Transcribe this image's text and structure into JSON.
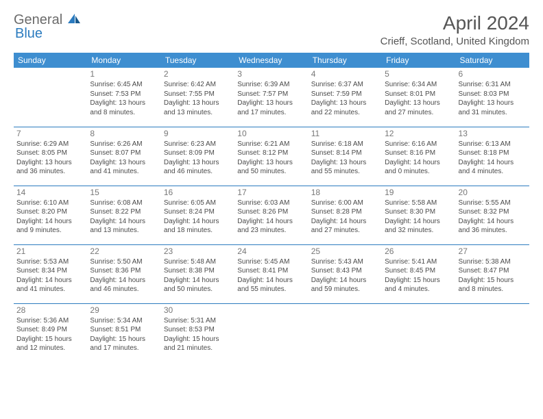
{
  "brand": {
    "part1": "General",
    "part2": "Blue"
  },
  "title": "April 2024",
  "location": "Crieff, Scotland, United Kingdom",
  "colors": {
    "header_bg": "#3e8ed0",
    "header_text": "#ffffff",
    "rule": "#2b7bbf",
    "body_text": "#4a4a4a",
    "daynum": "#777777",
    "title_text": "#555555",
    "logo_gray": "#6b6b6b",
    "logo_blue": "#2b7bbf",
    "background": "#ffffff"
  },
  "type": "calendar-table",
  "columns": [
    "Sunday",
    "Monday",
    "Tuesday",
    "Wednesday",
    "Thursday",
    "Friday",
    "Saturday"
  ],
  "weeks": [
    [
      null,
      {
        "d": "1",
        "sr": "6:45 AM",
        "ss": "7:53 PM",
        "dl1": "Daylight: 13 hours",
        "dl2": "and 8 minutes."
      },
      {
        "d": "2",
        "sr": "6:42 AM",
        "ss": "7:55 PM",
        "dl1": "Daylight: 13 hours",
        "dl2": "and 13 minutes."
      },
      {
        "d": "3",
        "sr": "6:39 AM",
        "ss": "7:57 PM",
        "dl1": "Daylight: 13 hours",
        "dl2": "and 17 minutes."
      },
      {
        "d": "4",
        "sr": "6:37 AM",
        "ss": "7:59 PM",
        "dl1": "Daylight: 13 hours",
        "dl2": "and 22 minutes."
      },
      {
        "d": "5",
        "sr": "6:34 AM",
        "ss": "8:01 PM",
        "dl1": "Daylight: 13 hours",
        "dl2": "and 27 minutes."
      },
      {
        "d": "6",
        "sr": "6:31 AM",
        "ss": "8:03 PM",
        "dl1": "Daylight: 13 hours",
        "dl2": "and 31 minutes."
      }
    ],
    [
      {
        "d": "7",
        "sr": "6:29 AM",
        "ss": "8:05 PM",
        "dl1": "Daylight: 13 hours",
        "dl2": "and 36 minutes."
      },
      {
        "d": "8",
        "sr": "6:26 AM",
        "ss": "8:07 PM",
        "dl1": "Daylight: 13 hours",
        "dl2": "and 41 minutes."
      },
      {
        "d": "9",
        "sr": "6:23 AM",
        "ss": "8:09 PM",
        "dl1": "Daylight: 13 hours",
        "dl2": "and 46 minutes."
      },
      {
        "d": "10",
        "sr": "6:21 AM",
        "ss": "8:12 PM",
        "dl1": "Daylight: 13 hours",
        "dl2": "and 50 minutes."
      },
      {
        "d": "11",
        "sr": "6:18 AM",
        "ss": "8:14 PM",
        "dl1": "Daylight: 13 hours",
        "dl2": "and 55 minutes."
      },
      {
        "d": "12",
        "sr": "6:16 AM",
        "ss": "8:16 PM",
        "dl1": "Daylight: 14 hours",
        "dl2": "and 0 minutes."
      },
      {
        "d": "13",
        "sr": "6:13 AM",
        "ss": "8:18 PM",
        "dl1": "Daylight: 14 hours",
        "dl2": "and 4 minutes."
      }
    ],
    [
      {
        "d": "14",
        "sr": "6:10 AM",
        "ss": "8:20 PM",
        "dl1": "Daylight: 14 hours",
        "dl2": "and 9 minutes."
      },
      {
        "d": "15",
        "sr": "6:08 AM",
        "ss": "8:22 PM",
        "dl1": "Daylight: 14 hours",
        "dl2": "and 13 minutes."
      },
      {
        "d": "16",
        "sr": "6:05 AM",
        "ss": "8:24 PM",
        "dl1": "Daylight: 14 hours",
        "dl2": "and 18 minutes."
      },
      {
        "d": "17",
        "sr": "6:03 AM",
        "ss": "8:26 PM",
        "dl1": "Daylight: 14 hours",
        "dl2": "and 23 minutes."
      },
      {
        "d": "18",
        "sr": "6:00 AM",
        "ss": "8:28 PM",
        "dl1": "Daylight: 14 hours",
        "dl2": "and 27 minutes."
      },
      {
        "d": "19",
        "sr": "5:58 AM",
        "ss": "8:30 PM",
        "dl1": "Daylight: 14 hours",
        "dl2": "and 32 minutes."
      },
      {
        "d": "20",
        "sr": "5:55 AM",
        "ss": "8:32 PM",
        "dl1": "Daylight: 14 hours",
        "dl2": "and 36 minutes."
      }
    ],
    [
      {
        "d": "21",
        "sr": "5:53 AM",
        "ss": "8:34 PM",
        "dl1": "Daylight: 14 hours",
        "dl2": "and 41 minutes."
      },
      {
        "d": "22",
        "sr": "5:50 AM",
        "ss": "8:36 PM",
        "dl1": "Daylight: 14 hours",
        "dl2": "and 46 minutes."
      },
      {
        "d": "23",
        "sr": "5:48 AM",
        "ss": "8:38 PM",
        "dl1": "Daylight: 14 hours",
        "dl2": "and 50 minutes."
      },
      {
        "d": "24",
        "sr": "5:45 AM",
        "ss": "8:41 PM",
        "dl1": "Daylight: 14 hours",
        "dl2": "and 55 minutes."
      },
      {
        "d": "25",
        "sr": "5:43 AM",
        "ss": "8:43 PM",
        "dl1": "Daylight: 14 hours",
        "dl2": "and 59 minutes."
      },
      {
        "d": "26",
        "sr": "5:41 AM",
        "ss": "8:45 PM",
        "dl1": "Daylight: 15 hours",
        "dl2": "and 4 minutes."
      },
      {
        "d": "27",
        "sr": "5:38 AM",
        "ss": "8:47 PM",
        "dl1": "Daylight: 15 hours",
        "dl2": "and 8 minutes."
      }
    ],
    [
      {
        "d": "28",
        "sr": "5:36 AM",
        "ss": "8:49 PM",
        "dl1": "Daylight: 15 hours",
        "dl2": "and 12 minutes."
      },
      {
        "d": "29",
        "sr": "5:34 AM",
        "ss": "8:51 PM",
        "dl1": "Daylight: 15 hours",
        "dl2": "and 17 minutes."
      },
      {
        "d": "30",
        "sr": "5:31 AM",
        "ss": "8:53 PM",
        "dl1": "Daylight: 15 hours",
        "dl2": "and 21 minutes."
      },
      null,
      null,
      null,
      null
    ]
  ],
  "labels": {
    "sunrise": "Sunrise:",
    "sunset": "Sunset:"
  }
}
